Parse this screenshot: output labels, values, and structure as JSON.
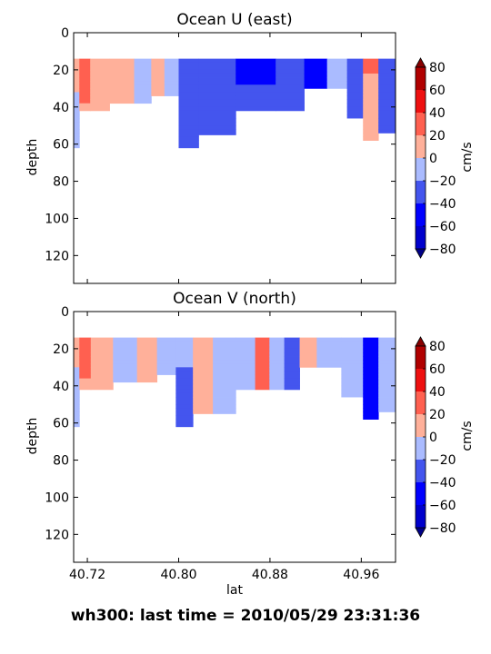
{
  "chart_data": {
    "type": "heatmap",
    "super_title": "wh300: last time = 2010/05/29 23:31:36",
    "shared_x": {
      "label": "lat",
      "ticks": [
        40.72,
        40.8,
        40.88,
        40.96
      ],
      "tick_labels": [
        "40.72",
        "40.80",
        "40.88",
        "40.96"
      ],
      "xlim": [
        40.708,
        40.99
      ]
    },
    "panels": [
      {
        "title": "Ocean U (east)",
        "ylabel": "depth",
        "ylim": [
          135,
          0
        ],
        "yticks": [
          0,
          20,
          40,
          60,
          80,
          100,
          120
        ],
        "ytick_labels": [
          "0",
          "20",
          "40",
          "60",
          "80",
          "100",
          "120"
        ],
        "colorbar": {
          "label": "cm/s",
          "ticks": [
            "80",
            "60",
            "40",
            "20",
            "0",
            "−20",
            "−40",
            "−60",
            "−80"
          ]
        },
        "shallowest_bin_depth": 14,
        "profiles": [
          {
            "lat": 40.71,
            "max_depth": 62,
            "values": [
              [
                14,
                20
              ],
              [
                40,
                -10
              ],
              [
                62,
                -10
              ]
            ]
          },
          {
            "lat": 40.716,
            "max_depth": 42,
            "values": [
              [
                14,
                30
              ],
              [
                24,
                35
              ],
              [
                32,
                30
              ],
              [
                42,
                10
              ]
            ]
          },
          {
            "lat": 40.729,
            "max_depth": 42,
            "values": [
              [
                14,
                15
              ],
              [
                30,
                5
              ],
              [
                42,
                5
              ]
            ]
          },
          {
            "lat": 40.75,
            "max_depth": 38,
            "values": [
              [
                14,
                10
              ],
              [
                38,
                5
              ]
            ]
          },
          {
            "lat": 40.772,
            "max_depth": 38,
            "values": [
              [
                14,
                -5
              ],
              [
                38,
                -5
              ]
            ]
          },
          {
            "lat": 40.78,
            "max_depth": 34,
            "values": [
              [
                14,
                5
              ],
              [
                34,
                5
              ]
            ]
          },
          {
            "lat": 40.795,
            "max_depth": 34,
            "values": [
              [
                14,
                -15
              ],
              [
                34,
                -15
              ]
            ]
          },
          {
            "lat": 40.805,
            "max_depth": 62,
            "values": [
              [
                14,
                -25
              ],
              [
                62,
                -25
              ]
            ]
          },
          {
            "lat": 40.83,
            "max_depth": 55,
            "values": [
              [
                14,
                -30
              ],
              [
                55,
                -30
              ]
            ]
          },
          {
            "lat": 40.87,
            "max_depth": 42,
            "values": [
              [
                14,
                -45
              ],
              [
                42,
                -35
              ]
            ]
          },
          {
            "lat": 40.9,
            "max_depth": 42,
            "values": [
              [
                14,
                -30
              ],
              [
                42,
                -30
              ]
            ]
          },
          {
            "lat": 40.92,
            "max_depth": 30,
            "values": [
              [
                14,
                -45
              ],
              [
                30,
                -40
              ]
            ]
          },
          {
            "lat": 40.94,
            "max_depth": 30,
            "values": [
              [
                14,
                -15
              ],
              [
                30,
                -15
              ]
            ]
          },
          {
            "lat": 40.955,
            "max_depth": 46,
            "values": [
              [
                14,
                -30
              ],
              [
                46,
                -25
              ]
            ]
          },
          {
            "lat": 40.968,
            "max_depth": 58,
            "values": [
              [
                14,
                25
              ],
              [
                46,
                5
              ],
              [
                58,
                5
              ]
            ]
          },
          {
            "lat": 40.982,
            "max_depth": 54,
            "values": [
              [
                14,
                -40
              ],
              [
                54,
                -30
              ]
            ]
          }
        ]
      },
      {
        "title": "Ocean V (north)",
        "ylabel": "depth",
        "ylim": [
          135,
          0
        ],
        "yticks": [
          0,
          20,
          40,
          60,
          80,
          100,
          120
        ],
        "ytick_labels": [
          "0",
          "20",
          "40",
          "60",
          "80",
          "100",
          "120"
        ],
        "colorbar": {
          "label": "cm/s",
          "ticks": [
            "80",
            "60",
            "40",
            "20",
            "0",
            "−20",
            "−40",
            "−60",
            "−80"
          ]
        },
        "shallowest_bin_depth": 14,
        "profiles": [
          {
            "lat": 40.71,
            "max_depth": 62,
            "values": [
              [
                14,
                15
              ],
              [
                40,
                -10
              ],
              [
                62,
                -10
              ]
            ]
          },
          {
            "lat": 40.716,
            "max_depth": 42,
            "values": [
              [
                14,
                35
              ],
              [
                30,
                30
              ],
              [
                42,
                10
              ]
            ]
          },
          {
            "lat": 40.73,
            "max_depth": 42,
            "values": [
              [
                14,
                10
              ],
              [
                42,
                10
              ]
            ]
          },
          {
            "lat": 40.755,
            "max_depth": 38,
            "values": [
              [
                14,
                -5
              ],
              [
                38,
                -5
              ]
            ]
          },
          {
            "lat": 40.772,
            "max_depth": 38,
            "values": [
              [
                14,
                5
              ],
              [
                38,
                5
              ]
            ]
          },
          {
            "lat": 40.79,
            "max_depth": 34,
            "values": [
              [
                14,
                -10
              ],
              [
                34,
                -10
              ]
            ]
          },
          {
            "lat": 40.805,
            "max_depth": 62,
            "values": [
              [
                14,
                -15
              ],
              [
                46,
                -25
              ],
              [
                62,
                -25
              ]
            ]
          },
          {
            "lat": 40.82,
            "max_depth": 55,
            "values": [
              [
                14,
                5
              ],
              [
                55,
                5
              ]
            ]
          },
          {
            "lat": 40.84,
            "max_depth": 55,
            "values": [
              [
                14,
                -10
              ],
              [
                55,
                -10
              ]
            ]
          },
          {
            "lat": 40.86,
            "max_depth": 42,
            "values": [
              [
                14,
                -10
              ],
              [
                42,
                -10
              ]
            ]
          },
          {
            "lat": 40.874,
            "max_depth": 42,
            "values": [
              [
                14,
                30
              ],
              [
                42,
                30
              ]
            ]
          },
          {
            "lat": 40.885,
            "max_depth": 42,
            "values": [
              [
                14,
                -15
              ],
              [
                42,
                -15
              ]
            ]
          },
          {
            "lat": 40.9,
            "max_depth": 42,
            "values": [
              [
                14,
                -25
              ],
              [
                42,
                -20
              ]
            ]
          },
          {
            "lat": 40.912,
            "max_depth": 30,
            "values": [
              [
                14,
                15
              ],
              [
                30,
                15
              ]
            ]
          },
          {
            "lat": 40.93,
            "max_depth": 30,
            "values": [
              [
                14,
                -10
              ],
              [
                30,
                -10
              ]
            ]
          },
          {
            "lat": 40.955,
            "max_depth": 46,
            "values": [
              [
                14,
                -20
              ],
              [
                46,
                -20
              ]
            ]
          },
          {
            "lat": 40.968,
            "max_depth": 58,
            "values": [
              [
                14,
                -45
              ],
              [
                46,
                -50
              ],
              [
                58,
                -50
              ]
            ]
          },
          {
            "lat": 40.982,
            "max_depth": 54,
            "values": [
              [
                14,
                -20
              ],
              [
                54,
                -15
              ]
            ]
          }
        ]
      }
    ]
  },
  "colormap": {
    "levels": [
      -80,
      -60,
      -40,
      -20,
      0,
      20,
      40,
      60,
      80
    ],
    "colors": [
      "#0000cc",
      "#0000ff",
      "#4455ee",
      "#aabbff",
      "#ffb09a",
      "#ff6050",
      "#ee1010",
      "#b00000"
    ],
    "under_color": "#000088",
    "over_color": "#880000"
  }
}
